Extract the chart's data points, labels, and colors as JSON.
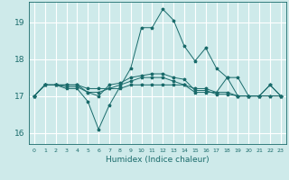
{
  "xlabel": "Humidex (Indice chaleur)",
  "background_color": "#ceeaea",
  "grid_color": "#ffffff",
  "line_color": "#1a6b6b",
  "xlim": [
    -0.5,
    23.5
  ],
  "ylim": [
    15.7,
    19.55
  ],
  "yticks": [
    16,
    17,
    18,
    19
  ],
  "xtick_labels": [
    "0",
    "1",
    "2",
    "3",
    "4",
    "5",
    "6",
    "7",
    "8",
    "9",
    "10",
    "11",
    "12",
    "13",
    "14",
    "15",
    "16",
    "17",
    "18",
    "19",
    "20",
    "21",
    "22",
    "23"
  ],
  "series": [
    [
      17.0,
      17.3,
      17.3,
      17.2,
      17.2,
      16.85,
      16.1,
      16.75,
      17.25,
      17.75,
      18.85,
      18.85,
      19.35,
      19.05,
      18.35,
      17.95,
      18.3,
      17.75,
      17.5,
      17.5,
      17.0,
      17.0,
      17.3,
      17.0
    ],
    [
      17.0,
      17.3,
      17.3,
      17.25,
      17.25,
      17.1,
      17.0,
      17.3,
      17.35,
      17.5,
      17.55,
      17.6,
      17.6,
      17.5,
      17.45,
      17.15,
      17.15,
      17.05,
      17.05,
      17.0,
      17.0,
      17.0,
      17.0,
      17.0
    ],
    [
      17.0,
      17.3,
      17.3,
      17.3,
      17.3,
      17.2,
      17.2,
      17.2,
      17.2,
      17.3,
      17.3,
      17.3,
      17.3,
      17.3,
      17.3,
      17.1,
      17.1,
      17.1,
      17.1,
      17.0,
      17.0,
      17.0,
      17.0,
      17.0
    ],
    [
      17.0,
      17.3,
      17.3,
      17.3,
      17.3,
      17.1,
      17.1,
      17.2,
      17.3,
      17.4,
      17.5,
      17.5,
      17.5,
      17.4,
      17.3,
      17.2,
      17.2,
      17.1,
      17.5,
      17.0,
      17.0,
      17.0,
      17.3,
      17.0
    ]
  ]
}
